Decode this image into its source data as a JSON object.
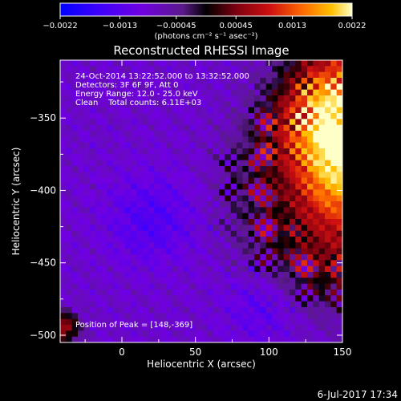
{
  "chart_data": {
    "type": "heatmap",
    "title": "Reconstructed RHESSI Image",
    "xlabel": "Heliocentric X (arcsec)",
    "ylabel": "Heliocentric Y (arcsec)",
    "xlim": [
      -42,
      150
    ],
    "ylim": [
      -505,
      -310
    ],
    "x_ticks": [
      0,
      50,
      100,
      150
    ],
    "x_tick_labels": [
      "0",
      "50",
      "100",
      "150"
    ],
    "y_ticks": [
      -350,
      -400,
      -450,
      -500
    ],
    "y_tick_labels": [
      "−350",
      "−400",
      "−450",
      "−500"
    ],
    "colorbar": {
      "min": -0.0022,
      "max": 0.0022,
      "ticks": [
        -0.0022,
        -0.0013,
        -0.00045,
        0.00045,
        0.0013,
        0.0022
      ],
      "tick_labels": [
        "−0.0022",
        "−0.0013",
        "−0.00045",
        "0.00045",
        "0.0013",
        "0.0022"
      ],
      "unit_label": "(photons cm⁻² s⁻¹ asec⁻²)",
      "colormap": [
        "#0000ff",
        "#3a00ff",
        "#7000e0",
        "#5a1a8a",
        "#000000",
        "#7a0010",
        "#d01010",
        "#ff6a00",
        "#ffc000",
        "#ffffc8"
      ]
    },
    "annotations": {
      "time_range": "24-Oct-2014 13:22:52.000 to 13:32:52.000",
      "detectors": "Detectors: 3F 6F 9F, Att 0",
      "energy": "Energy Range: 12.0 - 25.0 keV",
      "method": "Clean    Total counts: 6.11E+03",
      "peak": "Position of Peak = [148,-369]"
    },
    "peak": {
      "x": 148,
      "y": -369
    },
    "pixel_grid": {
      "cols": 48,
      "rows": 48
    }
  },
  "footer": {
    "date": "6-Jul-2017 17:34"
  }
}
